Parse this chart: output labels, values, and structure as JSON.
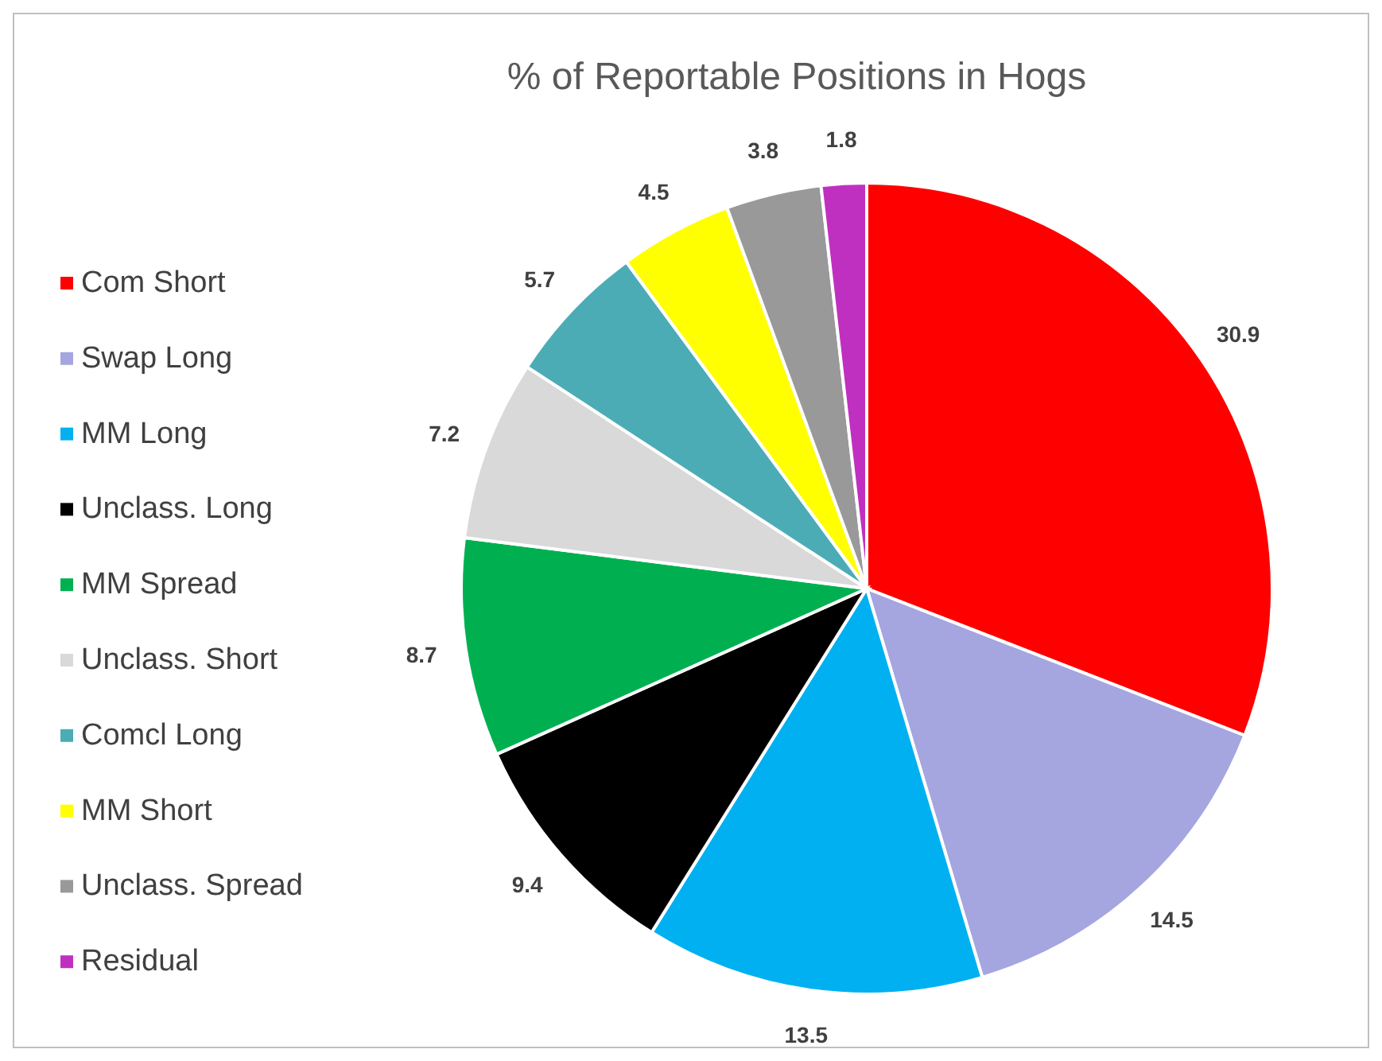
{
  "chart_data": {
    "type": "pie",
    "title": "% of Reportable Positions in Hogs",
    "categories": [
      "Com Short",
      "Swap Long",
      "MM Long",
      "Unclass. Long",
      "MM Spread",
      "Unclass. Short",
      "Comcl Long",
      "MM Short",
      "Unclass. Spread",
      "Residual"
    ],
    "values": [
      30.9,
      14.5,
      13.5,
      9.4,
      8.7,
      7.2,
      5.7,
      4.5,
      3.8,
      1.8
    ],
    "colors": [
      "#ff0000",
      "#a5a5e0",
      "#00b0f0",
      "#000000",
      "#00b050",
      "#d9d9d9",
      "#4bacb6",
      "#ffff00",
      "#999999",
      "#c030c0"
    ],
    "data_labels": true,
    "legend": "left"
  }
}
